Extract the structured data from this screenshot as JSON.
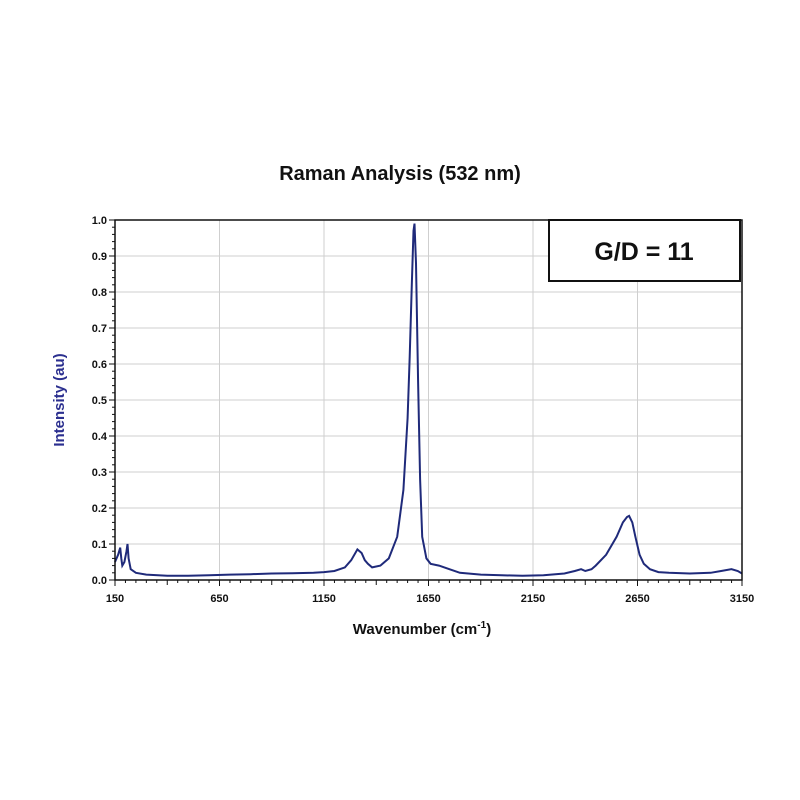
{
  "chart_data": {
    "type": "line",
    "title": "Raman Analysis (532 nm)",
    "xlabel": "Wavenumber (cm",
    "xlabel_superscript": "-1",
    "xlabel_suffix": ")",
    "ylabel": "Intensity (au)",
    "xlim": [
      150,
      3150
    ],
    "ylim": [
      0,
      1.0
    ],
    "xticks": [
      "150",
      "650",
      "1150",
      "1650",
      "2150",
      "2650",
      "3150"
    ],
    "yticks": [
      "0.0",
      "0.1",
      "0.2",
      "0.3",
      "0.4",
      "0.5",
      "0.6",
      "0.7",
      "0.8",
      "0.9",
      "1.0"
    ],
    "grid": true,
    "annotation": "G/D = 11",
    "line_color": "#1f2a7a",
    "label_color": "#2b2f8f",
    "series": [
      {
        "x": [
          150,
          165,
          175,
          180,
          185,
          195,
          205,
          210,
          215,
          225,
          250,
          300,
          400,
          500,
          600,
          700,
          800,
          900,
          1000,
          1100,
          1150,
          1200,
          1250,
          1280,
          1310,
          1330,
          1345,
          1360,
          1380,
          1420,
          1460,
          1500,
          1530,
          1550,
          1560,
          1570,
          1578,
          1583,
          1590,
          1600,
          1610,
          1620,
          1640,
          1660,
          1700,
          1750,
          1800,
          1900,
          2000,
          2100,
          2200,
          2300,
          2350,
          2380,
          2400,
          2430,
          2450,
          2500,
          2550,
          2580,
          2600,
          2610,
          2625,
          2640,
          2660,
          2680,
          2710,
          2750,
          2800,
          2900,
          3000,
          3050,
          3100,
          3130,
          3150
        ],
        "y": [
          0.05,
          0.07,
          0.09,
          0.06,
          0.04,
          0.05,
          0.08,
          0.1,
          0.06,
          0.03,
          0.02,
          0.015,
          0.012,
          0.012,
          0.013,
          0.015,
          0.016,
          0.018,
          0.019,
          0.02,
          0.022,
          0.025,
          0.035,
          0.055,
          0.085,
          0.075,
          0.055,
          0.045,
          0.035,
          0.04,
          0.06,
          0.12,
          0.25,
          0.45,
          0.62,
          0.82,
          0.97,
          0.99,
          0.88,
          0.55,
          0.28,
          0.12,
          0.06,
          0.045,
          0.04,
          0.03,
          0.02,
          0.015,
          0.013,
          0.012,
          0.013,
          0.018,
          0.025,
          0.03,
          0.025,
          0.03,
          0.04,
          0.07,
          0.12,
          0.16,
          0.175,
          0.178,
          0.16,
          0.12,
          0.07,
          0.045,
          0.03,
          0.022,
          0.02,
          0.018,
          0.02,
          0.025,
          0.03,
          0.025,
          0.018
        ]
      }
    ]
  }
}
